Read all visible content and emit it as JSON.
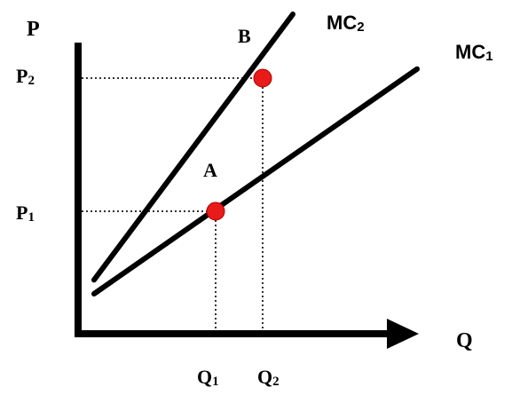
{
  "chart_data": {
    "type": "line",
    "axes": {
      "y_label": "P",
      "x_label": "Q"
    },
    "series": [
      {
        "name": "MC",
        "subscript": "2",
        "points": [
          [
            0,
            0.1
          ],
          [
            3.2,
            4.0
          ]
        ]
      },
      {
        "name": "MC",
        "subscript": "1",
        "points": [
          [
            0,
            0.0
          ],
          [
            5.2,
            3.3
          ]
        ]
      }
    ],
    "ticks": {
      "x": [
        {
          "main": "Q",
          "sub": "1",
          "value": 2.2
        },
        {
          "main": "Q",
          "sub": "2",
          "value": 3.0
        }
      ],
      "y": [
        {
          "main": "P",
          "sub": "1",
          "value": 1.5
        },
        {
          "main": "P",
          "sub": "2",
          "value": 3.4
        }
      ]
    },
    "points": [
      {
        "label": "A",
        "x": 2.2,
        "y": 1.5,
        "color": "#e81a1a"
      },
      {
        "label": "B",
        "x": 3.0,
        "y": 3.4,
        "color": "#e81a1a"
      }
    ],
    "xlim": [
      0,
      5.4
    ],
    "ylim": [
      0,
      4.3
    ]
  }
}
